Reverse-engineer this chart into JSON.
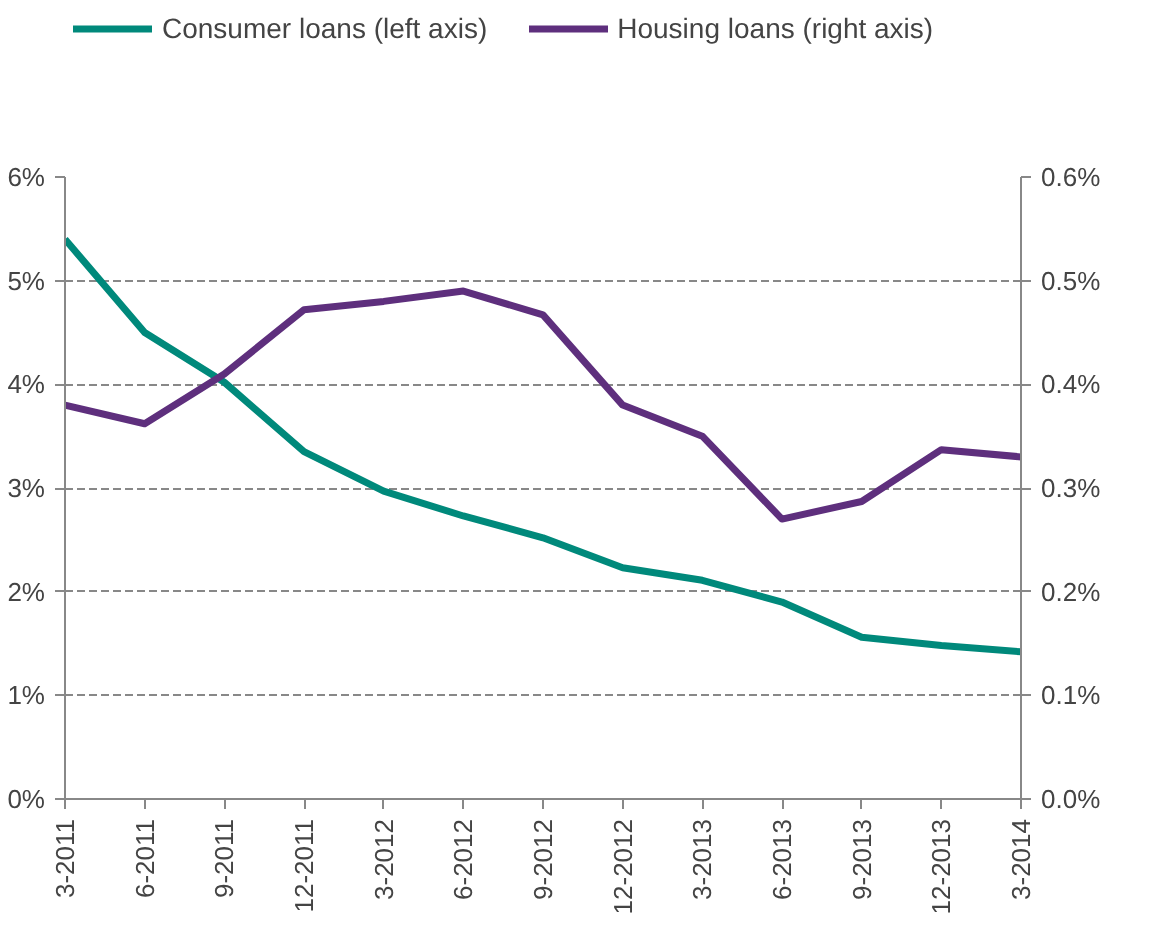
{
  "chart_data": {
    "type": "line",
    "categories": [
      "3-2011",
      "6-2011",
      "9-2011",
      "12-2011",
      "3-2012",
      "6-2012",
      "9-2012",
      "12-2012",
      "3-2013",
      "6-2013",
      "9-2013",
      "12-2013",
      "3-2014"
    ],
    "series": [
      {
        "name": "Consumer loans (left axis)",
        "color": "#00897b",
        "values": [
          5.4,
          4.5,
          4.02,
          3.35,
          2.97,
          2.73,
          2.52,
          2.23,
          2.11,
          1.9,
          1.56,
          1.48,
          1.42
        ]
      },
      {
        "name": "Housing loans (right axis)",
        "color": "#5e2f7d",
        "axis": "y2",
        "values": [
          0.38,
          0.362,
          0.41,
          0.472,
          0.48,
          0.49,
          0.467,
          0.38,
          0.35,
          0.27,
          0.287,
          0.337,
          0.33
        ]
      }
    ],
    "ylim": [
      0,
      6
    ],
    "yticks": [
      {
        "value": 0,
        "label": "0%"
      },
      {
        "value": 1,
        "label": "1%"
      },
      {
        "value": 2,
        "label": "2%"
      },
      {
        "value": 3,
        "label": "3%"
      },
      {
        "value": 4,
        "label": "4%"
      },
      {
        "value": 5,
        "label": "5%"
      },
      {
        "value": 6,
        "label": "6%"
      }
    ],
    "y2lim": [
      0,
      0.6
    ],
    "y2ticks": [
      {
        "value": 0,
        "label": "0.0%"
      },
      {
        "value": 0.1,
        "label": "0.1%"
      },
      {
        "value": 0.2,
        "label": "0.2%"
      },
      {
        "value": 0.3,
        "label": "0.3%"
      },
      {
        "value": 0.4,
        "label": "0.4%"
      },
      {
        "value": 0.5,
        "label": "0.5%"
      },
      {
        "value": 0.6,
        "label": "0.6%"
      }
    ],
    "grid": "y",
    "legend": "top",
    "marker": "none",
    "line_style": "solid"
  }
}
